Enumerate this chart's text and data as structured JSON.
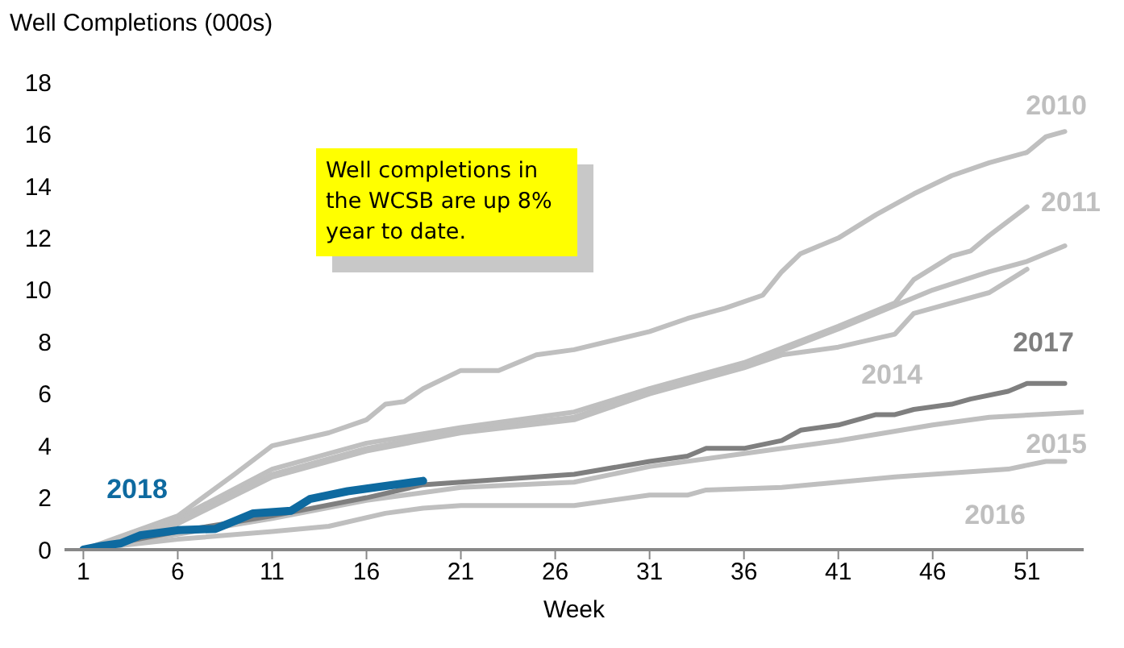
{
  "chart_data": {
    "type": "line",
    "ylabel": "Well Completions (000s)",
    "xlabel": "Week",
    "annotations": [
      "Well completions in the WCSB are up 8% year to date."
    ],
    "xlim": [
      0,
      54
    ],
    "xticks": [
      1,
      6,
      11,
      16,
      21,
      26,
      31,
      36,
      41,
      46,
      51
    ],
    "ylim": [
      0,
      18
    ],
    "yticks": [
      0,
      2,
      4,
      6,
      8,
      10,
      12,
      14,
      16,
      18
    ],
    "legend": false,
    "marker": "none",
    "line_style": "solid",
    "series": [
      {
        "name": "2010",
        "color": "#bfbfbf",
        "x": [
          1,
          6,
          9,
          11,
          14,
          16,
          17,
          18,
          19,
          21,
          23,
          25,
          27,
          31,
          33,
          35,
          37,
          38,
          39,
          41,
          43,
          45,
          47,
          49,
          51,
          52,
          53
        ],
        "values": [
          0,
          1.3,
          2.9,
          4.0,
          4.5,
          5.0,
          5.6,
          5.7,
          6.2,
          6.9,
          6.9,
          7.5,
          7.7,
          8.4,
          8.9,
          9.3,
          9.8,
          10.7,
          11.4,
          12.0,
          12.9,
          13.7,
          14.4,
          14.9,
          15.3,
          15.9,
          16.1
        ]
      },
      {
        "name": "2011",
        "color": "#bfbfbf",
        "x": [
          1,
          6,
          11,
          16,
          21,
          27,
          31,
          36,
          41,
          44,
          45,
          47,
          48,
          49,
          51
        ],
        "values": [
          0,
          1.2,
          3.1,
          4.1,
          4.7,
          5.3,
          6.2,
          7.2,
          8.6,
          9.5,
          10.4,
          11.3,
          11.5,
          12.1,
          13.2
        ]
      },
      {
        "color": "#bfbfbf",
        "x": [
          1,
          6,
          11,
          16,
          21,
          27,
          31,
          36,
          41,
          44,
          46,
          49,
          51,
          53
        ],
        "values": [
          0,
          1.1,
          2.9,
          3.9,
          4.6,
          5.1,
          6.1,
          7.1,
          8.5,
          9.4,
          10.0,
          10.7,
          11.1,
          11.7
        ]
      },
      {
        "name": "2014",
        "color": "#bfbfbf",
        "x": [
          1,
          6,
          11,
          16,
          21,
          27,
          31,
          36,
          38,
          41,
          44,
          45,
          46,
          49,
          51
        ],
        "values": [
          0,
          1.0,
          2.8,
          3.8,
          4.5,
          5.0,
          6.0,
          7.0,
          7.5,
          7.8,
          8.3,
          9.1,
          9.3,
          9.9,
          10.8
        ]
      },
      {
        "name": "2015",
        "color": "#bfbfbf",
        "x": [
          1,
          6,
          11,
          16,
          21,
          27,
          31,
          36,
          41,
          46,
          49,
          54
        ],
        "values": [
          0,
          0.6,
          1.2,
          1.9,
          2.4,
          2.6,
          3.2,
          3.7,
          4.2,
          4.8,
          5.1,
          5.3
        ]
      },
      {
        "name": "2016",
        "color": "#bfbfbf",
        "x": [
          1,
          6,
          11,
          14,
          17,
          19,
          21,
          27,
          31,
          33,
          34,
          38,
          41,
          44,
          46,
          50,
          52,
          53
        ],
        "values": [
          0,
          0.4,
          0.7,
          0.9,
          1.4,
          1.6,
          1.7,
          1.7,
          2.1,
          2.1,
          2.3,
          2.4,
          2.6,
          2.8,
          2.9,
          3.1,
          3.4,
          3.4
        ]
      },
      {
        "name": "2017",
        "color": "#7f7f7f",
        "x": [
          1,
          6,
          11,
          16,
          19,
          21,
          27,
          31,
          33,
          34,
          36,
          38,
          39,
          41,
          43,
          44,
          45,
          47,
          48,
          50,
          51,
          53
        ],
        "values": [
          0,
          0.7,
          1.3,
          2.0,
          2.5,
          2.6,
          2.9,
          3.4,
          3.6,
          3.9,
          3.9,
          4.2,
          4.6,
          4.8,
          5.2,
          5.2,
          5.4,
          5.6,
          5.8,
          6.1,
          6.4,
          6.4
        ]
      },
      {
        "name": "2018",
        "color": "#0e6aa0",
        "x": [
          1,
          2,
          3,
          4,
          6,
          8,
          9,
          10,
          12,
          13,
          15,
          17,
          19
        ],
        "values": [
          0,
          0.15,
          0.25,
          0.55,
          0.75,
          0.8,
          1.1,
          1.4,
          1.5,
          1.95,
          2.25,
          2.45,
          2.65
        ]
      }
    ]
  }
}
